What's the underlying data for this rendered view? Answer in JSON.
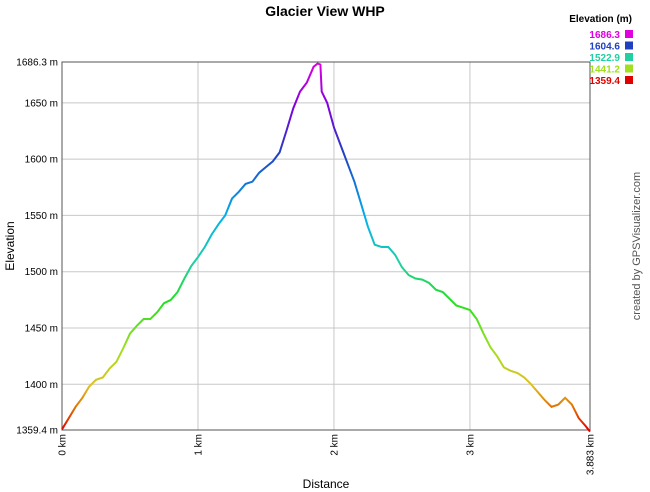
{
  "chart_data": {
    "type": "line",
    "title": "Glacier View WHP",
    "xlabel": "Distance",
    "ylabel": "Elevation",
    "credit": "created by GPSVisualizer.com",
    "xlim": [
      0,
      3.883
    ],
    "ylim": [
      1359.4,
      1686.3
    ],
    "x_ticks": [
      {
        "value": 0,
        "label": "0 km"
      },
      {
        "value": 1,
        "label": "1 km"
      },
      {
        "value": 2,
        "label": "2 km"
      },
      {
        "value": 3,
        "label": "3 km"
      },
      {
        "value": 3.883,
        "label": "3.883 km"
      }
    ],
    "y_ticks": [
      {
        "value": 1359.4,
        "label": "1359.4 m"
      },
      {
        "value": 1400,
        "label": "1400 m"
      },
      {
        "value": 1450,
        "label": "1450 m"
      },
      {
        "value": 1500,
        "label": "1500 m"
      },
      {
        "value": 1550,
        "label": "1550 m"
      },
      {
        "value": 1600,
        "label": "1600 m"
      },
      {
        "value": 1650,
        "label": "1650 m"
      },
      {
        "value": 1686.3,
        "label": "1686.3 m"
      }
    ],
    "grid": true,
    "legend": {
      "title": "Elevation (m)",
      "placement": "top-right",
      "entries": [
        {
          "label": "1686.3",
          "color": "#e000e0"
        },
        {
          "label": "1604.6",
          "color": "#2040c0"
        },
        {
          "label": "1522.9",
          "color": "#20d0a0"
        },
        {
          "label": "1441.2",
          "color": "#a0e020"
        },
        {
          "label": "1359.4",
          "color": "#e00000"
        }
      ]
    },
    "series": [
      {
        "x": [
          0,
          0.05,
          0.1,
          0.15,
          0.2,
          0.25,
          0.3,
          0.35,
          0.4,
          0.45,
          0.5,
          0.55,
          0.6,
          0.65,
          0.7,
          0.75,
          0.8,
          0.85,
          0.9,
          0.95,
          1.0,
          1.05,
          1.1,
          1.15,
          1.2,
          1.25,
          1.3,
          1.35,
          1.4,
          1.45,
          1.5,
          1.55,
          1.6,
          1.65,
          1.7,
          1.75,
          1.8,
          1.85,
          1.88,
          1.9,
          1.91,
          1.95,
          2.0,
          2.05,
          2.1,
          2.15,
          2.2,
          2.25,
          2.3,
          2.35,
          2.4,
          2.45,
          2.5,
          2.55,
          2.6,
          2.65,
          2.7,
          2.75,
          2.8,
          2.85,
          2.9,
          2.95,
          3.0,
          3.05,
          3.1,
          3.15,
          3.2,
          3.25,
          3.3,
          3.35,
          3.4,
          3.45,
          3.5,
          3.55,
          3.6,
          3.65,
          3.7,
          3.75,
          3.8,
          3.85,
          3.883
        ],
        "y": [
          1360,
          1370,
          1380,
          1388,
          1398,
          1404,
          1406,
          1414,
          1420,
          1432,
          1445,
          1452,
          1458,
          1458,
          1464,
          1472,
          1475,
          1482,
          1494,
          1505,
          1513,
          1522,
          1533,
          1542,
          1550,
          1565,
          1571,
          1578,
          1580,
          1588,
          1593,
          1598,
          1606,
          1625,
          1645,
          1660,
          1668,
          1682,
          1685,
          1684,
          1660,
          1650,
          1628,
          1612,
          1596,
          1580,
          1560,
          1540,
          1524,
          1522,
          1522,
          1515,
          1504,
          1497,
          1494,
          1493,
          1490,
          1484,
          1482,
          1476,
          1470,
          1468,
          1466,
          1458,
          1445,
          1433,
          1425,
          1415,
          1412,
          1410,
          1406,
          1400,
          1393,
          1386,
          1380,
          1382,
          1388,
          1382,
          1370,
          1363,
          1358
        ]
      }
    ]
  }
}
